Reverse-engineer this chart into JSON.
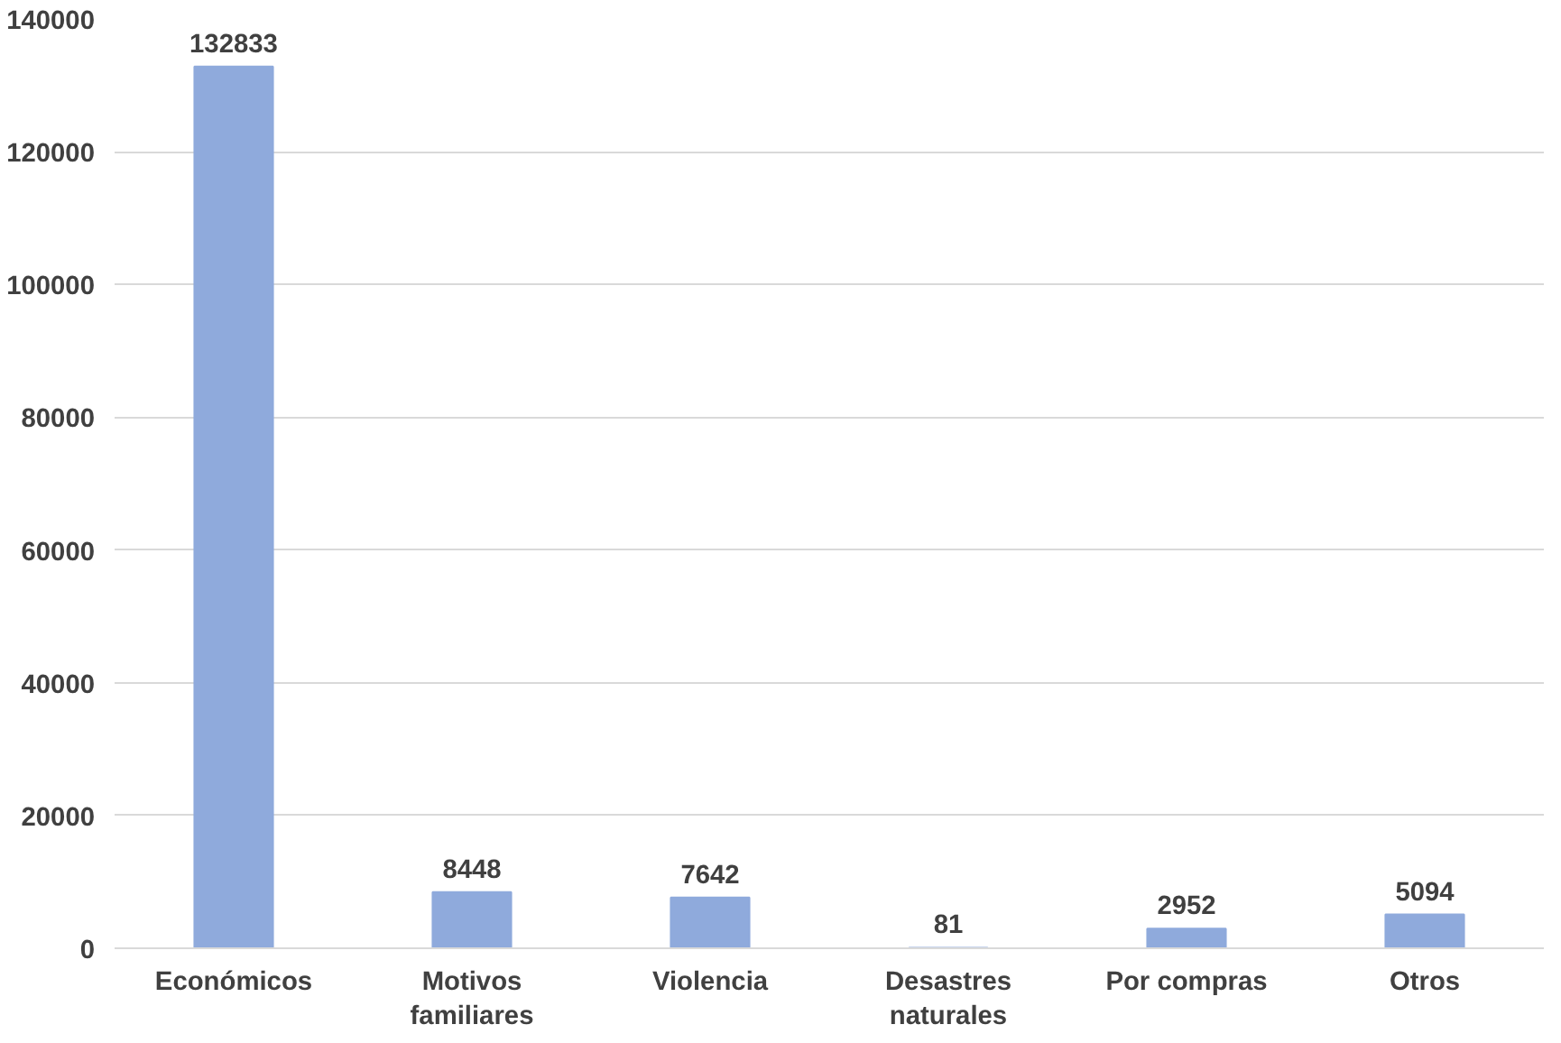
{
  "chart_data": {
    "type": "bar",
    "categories": [
      "Económicos",
      "Motivos familiares",
      "Violencia",
      "Desastres naturales",
      "Por compras",
      "Otros"
    ],
    "values": [
      132833,
      8448,
      7642,
      81,
      2952,
      5094
    ],
    "color": "#8faadc",
    "ylim": [
      0,
      140000
    ],
    "yticks": [
      0,
      20000,
      40000,
      60000,
      80000,
      100000,
      120000,
      140000
    ],
    "grid": "y",
    "data_labels": true
  }
}
